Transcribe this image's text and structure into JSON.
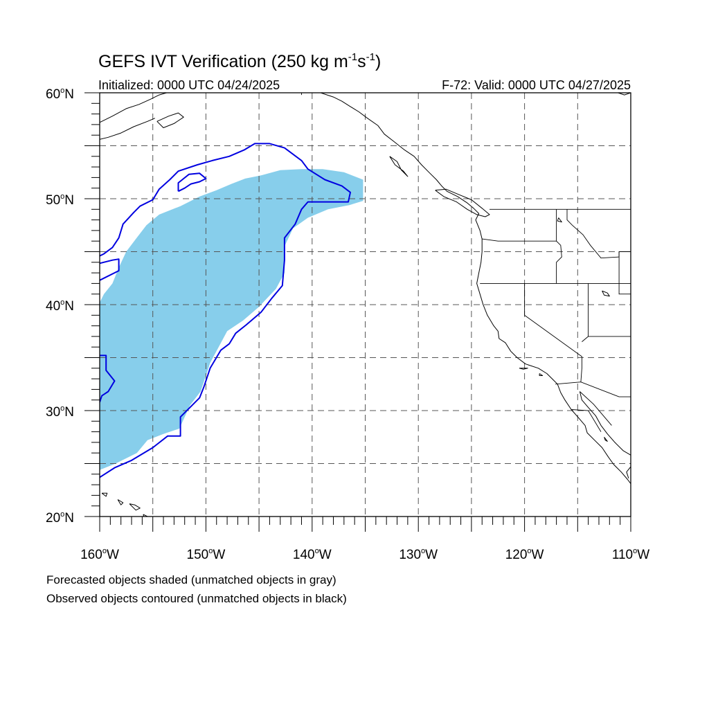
{
  "title": {
    "main": "GEFS IVT Verification (250 kg m",
    "sup1": "-1",
    "mid": "s",
    "sup2": "-1",
    "end": ")"
  },
  "subtitle": {
    "left": "Initialized: 0000 UTC 04/24/2025",
    "right": "F-72: Valid: 0000 UTC 04/27/2025"
  },
  "notes": [
    "Forecasted objects shaded (unmatched objects in gray)",
    "Observed objects contoured (unmatched objects in black)"
  ],
  "lat_labels": [
    {
      "lat": 60,
      "num": "60",
      "deg": "o",
      "hem": "N"
    },
    {
      "lat": 50,
      "num": "50",
      "deg": "o",
      "hem": "N"
    },
    {
      "lat": 40,
      "num": "40",
      "deg": "o",
      "hem": "N"
    },
    {
      "lat": 30,
      "num": "30",
      "deg": "o",
      "hem": "N"
    },
    {
      "lat": 20,
      "num": "20",
      "deg": "o",
      "hem": "N"
    }
  ],
  "lon_labels": [
    {
      "lon": -160,
      "num": "160",
      "deg": "o",
      "hem": "W"
    },
    {
      "lon": -150,
      "num": "150",
      "deg": "o",
      "hem": "W"
    },
    {
      "lon": -140,
      "num": "140",
      "deg": "o",
      "hem": "W"
    },
    {
      "lon": -130,
      "num": "130",
      "deg": "o",
      "hem": "W"
    },
    {
      "lon": -120,
      "num": "120",
      "deg": "o",
      "hem": "W"
    },
    {
      "lon": -110,
      "num": "110",
      "deg": "o",
      "hem": "W"
    }
  ],
  "map": {
    "lon_range": [
      -160,
      -110
    ],
    "lat_range": [
      20,
      60
    ],
    "grid_lons": [
      -155,
      -150,
      -145,
      -140,
      -135,
      -130,
      -125,
      -120,
      -115
    ],
    "grid_lats": [
      25,
      30,
      35,
      40,
      45,
      50,
      55
    ],
    "forecast_color": "#87ceeb",
    "observed_color": "#0000e0",
    "coast_color": "#000000"
  },
  "forecast_object": [
    [
      -160,
      24.4
    ],
    [
      -158.5,
      25.0
    ],
    [
      -156.5,
      26.0
    ],
    [
      -155.5,
      27.2
    ],
    [
      -154,
      27.8
    ],
    [
      -152.5,
      28.3
    ],
    [
      -151.5,
      30.5
    ],
    [
      -150.5,
      31.8
    ],
    [
      -149.6,
      34.5
    ],
    [
      -148.8,
      36.0
    ],
    [
      -148,
      37.5
    ],
    [
      -146.5,
      38.5
    ],
    [
      -145,
      39.8
    ],
    [
      -143.4,
      41.5
    ],
    [
      -142.6,
      43.0
    ],
    [
      -142.6,
      45.5
    ],
    [
      -141.8,
      47.2
    ],
    [
      -140.4,
      48.2
    ],
    [
      -138.5,
      49.0
    ],
    [
      -136.5,
      49.4
    ],
    [
      -135.2,
      49.8
    ],
    [
      -135.2,
      51.8
    ],
    [
      -137,
      52.5
    ],
    [
      -139,
      52.8
    ],
    [
      -141,
      52.8
    ],
    [
      -143,
      52.7
    ],
    [
      -144.8,
      52.2
    ],
    [
      -146.3,
      51.9
    ],
    [
      -147.6,
      51.4
    ],
    [
      -149,
      50.8
    ],
    [
      -150.6,
      50.2
    ],
    [
      -152.4,
      49.3
    ],
    [
      -154.4,
      48.5
    ],
    [
      -155.6,
      47.5
    ],
    [
      -156.6,
      46.2
    ],
    [
      -157.5,
      45.0
    ],
    [
      -158.2,
      43.5
    ],
    [
      -158.8,
      42.0
    ],
    [
      -159.6,
      41.0
    ],
    [
      -160,
      40.2
    ]
  ],
  "observed_objects": [
    [
      [
        -160,
        23.7
      ],
      [
        -158.6,
        24.6
      ],
      [
        -157,
        25.3
      ],
      [
        -155,
        26.5
      ],
      [
        -153.6,
        27.6
      ],
      [
        -152.4,
        27.6
      ],
      [
        -152.4,
        29.4
      ],
      [
        -151.4,
        30.4
      ],
      [
        -150.6,
        31.2
      ],
      [
        -150.2,
        32.2
      ],
      [
        -149.6,
        34.0
      ],
      [
        -148.6,
        35.7
      ],
      [
        -147.8,
        36.3
      ],
      [
        -147.2,
        37.3
      ],
      [
        -146.2,
        38.1
      ],
      [
        -144.8,
        39.3
      ],
      [
        -143.8,
        40.6
      ],
      [
        -142.8,
        41.8
      ],
      [
        -142.6,
        44.2
      ],
      [
        -142.6,
        46.3
      ],
      [
        -141.6,
        47.6
      ],
      [
        -141.0,
        49.0
      ],
      [
        -140.4,
        49.7
      ],
      [
        -138.6,
        49.7
      ],
      [
        -136.6,
        49.7
      ],
      [
        -136.4,
        50.6
      ],
      [
        -137.2,
        51.2
      ],
      [
        -138.8,
        51.8
      ],
      [
        -140.4,
        52.8
      ],
      [
        -141.0,
        53.6
      ],
      [
        -142.6,
        54.8
      ],
      [
        -144.0,
        55.2
      ],
      [
        -145.4,
        55.2
      ],
      [
        -146.4,
        54.6
      ],
      [
        -147.8,
        54.0
      ],
      [
        -149.4,
        53.6
      ],
      [
        -150.8,
        53.2
      ],
      [
        -152.6,
        52.6
      ],
      [
        -153.4,
        51.8
      ],
      [
        -154.4,
        50.9
      ],
      [
        -155.0,
        49.9
      ],
      [
        -156.2,
        49.3
      ],
      [
        -156.8,
        48.7
      ],
      [
        -157.8,
        47.6
      ],
      [
        -158.2,
        46.3
      ],
      [
        -158.8,
        45.4
      ],
      [
        -159.6,
        44.8
      ],
      [
        -160,
        44.6
      ]
    ],
    [
      [
        -152.6,
        50.7
      ],
      [
        -152.6,
        51.5
      ],
      [
        -151.6,
        52.3
      ],
      [
        -150.6,
        52.4
      ],
      [
        -150.0,
        51.9
      ],
      [
        -150.6,
        51.6
      ],
      [
        -151.4,
        51.4
      ],
      [
        -152.0,
        51.0
      ],
      [
        -152.6,
        50.7
      ]
    ],
    [
      [
        -160,
        43.9
      ],
      [
        -158.8,
        44.2
      ],
      [
        -158.2,
        44.3
      ],
      [
        -158.2,
        43.2
      ],
      [
        -159.4,
        42.6
      ],
      [
        -160,
        42.3
      ]
    ],
    [
      [
        -160,
        35.2
      ],
      [
        -159.4,
        35.2
      ],
      [
        -159.4,
        33.8
      ],
      [
        -158.6,
        32.8
      ],
      [
        -159.2,
        31.8
      ],
      [
        -159.8,
        31.4
      ],
      [
        -160,
        30.8
      ]
    ]
  ],
  "coastlines": [
    [
      [
        -160,
        57.2
      ],
      [
        -158.8,
        57.8
      ],
      [
        -157.5,
        58.5
      ],
      [
        -156.3,
        58.9
      ],
      [
        -155.2,
        59.4
      ],
      [
        -154.4,
        59.8
      ],
      [
        -153.7,
        60.0
      ]
    ],
    [
      [
        -160,
        55.6
      ],
      [
        -159.2,
        55.8
      ],
      [
        -158.0,
        56.2
      ],
      [
        -156.8,
        56.8
      ],
      [
        -155.5,
        57.3
      ],
      [
        -154.8,
        57.6
      ]
    ],
    [
      [
        -154.6,
        57.3
      ],
      [
        -153.5,
        57.8
      ],
      [
        -152.6,
        58.1
      ],
      [
        -152.1,
        57.7
      ],
      [
        -153.0,
        57.1
      ],
      [
        -154.0,
        56.7
      ],
      [
        -154.6,
        57.3
      ]
    ],
    [
      [
        -139.2,
        60
      ],
      [
        -138.0,
        59.6
      ],
      [
        -137.2,
        59.2
      ],
      [
        -136.4,
        58.7
      ],
      [
        -135.6,
        58.2
      ],
      [
        -134.8,
        57.6
      ],
      [
        -133.8,
        56.9
      ],
      [
        -133.2,
        56.1
      ],
      [
        -132.3,
        55.4
      ],
      [
        -131.3,
        54.6
      ],
      [
        -130.4,
        54.0
      ],
      [
        -129.7,
        53.2
      ],
      [
        -129.0,
        52.5
      ],
      [
        -128.3,
        51.8
      ],
      [
        -127.8,
        51.2
      ],
      [
        -127.3,
        50.7
      ],
      [
        -126.3,
        50.2
      ],
      [
        -125.4,
        49.6
      ],
      [
        -124.8,
        49.1
      ],
      [
        -124.3,
        48.6
      ],
      [
        -124.6,
        48.0
      ],
      [
        -124.2,
        47.0
      ],
      [
        -124.0,
        46.2
      ],
      [
        -124.0,
        45.0
      ],
      [
        -124.1,
        44.0
      ],
      [
        -124.3,
        43.0
      ],
      [
        -124.5,
        42.0
      ],
      [
        -124.2,
        41.0
      ],
      [
        -123.9,
        40.0
      ],
      [
        -123.5,
        39.0
      ],
      [
        -122.9,
        38.0
      ],
      [
        -122.5,
        37.5
      ],
      [
        -122.4,
        36.8
      ],
      [
        -121.8,
        36.4
      ],
      [
        -121.3,
        35.6
      ],
      [
        -120.7,
        35.0
      ],
      [
        -119.9,
        34.4
      ],
      [
        -118.7,
        34.0
      ],
      [
        -117.9,
        33.5
      ],
      [
        -117.3,
        32.9
      ],
      [
        -116.9,
        32.5
      ],
      [
        -116.6,
        31.7
      ],
      [
        -116.2,
        31.0
      ],
      [
        -115.6,
        30.1
      ],
      [
        -114.9,
        29.3
      ],
      [
        -114.3,
        28.6
      ],
      [
        -114.1,
        27.9
      ],
      [
        -113.4,
        27.2
      ],
      [
        -112.7,
        26.5
      ],
      [
        -112.1,
        25.6
      ],
      [
        -111.6,
        24.9
      ],
      [
        -110.9,
        24.2
      ],
      [
        -110.3,
        23.5
      ],
      [
        -110,
        23.1
      ]
    ],
    [
      [
        -128.4,
        50.8
      ],
      [
        -127.6,
        50.2
      ],
      [
        -126.4,
        49.7
      ],
      [
        -125.4,
        49.0
      ],
      [
        -124.5,
        48.5
      ],
      [
        -123.7,
        48.3
      ],
      [
        -123.3,
        48.5
      ],
      [
        -124.0,
        49.1
      ],
      [
        -125.0,
        49.9
      ],
      [
        -126.2,
        50.4
      ],
      [
        -127.4,
        50.9
      ],
      [
        -128.4,
        50.8
      ]
    ],
    [
      [
        -132.7,
        54.0
      ],
      [
        -132.0,
        53.5
      ],
      [
        -131.6,
        52.7
      ],
      [
        -131.0,
        52.1
      ],
      [
        -131.4,
        52.6
      ],
      [
        -132.2,
        53.2
      ],
      [
        -132.7,
        54.0
      ]
    ],
    [
      [
        -114.8,
        31.8
      ],
      [
        -114.6,
        31.0
      ],
      [
        -114.0,
        30.3
      ],
      [
        -113.3,
        29.5
      ],
      [
        -112.8,
        28.6
      ],
      [
        -112.2,
        27.8
      ],
      [
        -111.5,
        27.0
      ],
      [
        -110.7,
        26.2
      ],
      [
        -110,
        25.8
      ]
    ],
    [
      [
        -110,
        24.7
      ],
      [
        -110.4,
        24.2
      ],
      [
        -110.2,
        23.6
      ]
    ],
    [
      [
        -110,
        60
      ],
      [
        -110.6,
        59.8
      ],
      [
        -111.2,
        60
      ]
    ],
    [
      [
        -112.7,
        41.3
      ],
      [
        -112.2,
        41.1
      ],
      [
        -112.0,
        40.8
      ],
      [
        -112.5,
        40.9
      ],
      [
        -112.7,
        41.3
      ]
    ],
    [
      [
        -116.8,
        48.2
      ],
      [
        -116.5,
        47.8
      ],
      [
        -116.9,
        47.9
      ],
      [
        -116.8,
        48.2
      ]
    ],
    [
      [
        -159.8,
        22.2
      ],
      [
        -159.3,
        22.2
      ],
      [
        -159.4,
        21.9
      ],
      [
        -159.8,
        22.2
      ]
    ],
    [
      [
        -158.3,
        21.6
      ],
      [
        -157.8,
        21.3
      ],
      [
        -158.0,
        21.1
      ],
      [
        -158.3,
        21.6
      ]
    ],
    [
      [
        -157.2,
        21.2
      ],
      [
        -156.7,
        21.1
      ],
      [
        -156.2,
        20.8
      ],
      [
        -156.6,
        20.6
      ],
      [
        -157.2,
        21.2
      ]
    ],
    [
      [
        -155.9,
        20.2
      ],
      [
        -155.1,
        19.8
      ],
      [
        -154.9,
        19.5
      ],
      [
        -155.6,
        19.0
      ],
      [
        -155.9,
        20.2
      ]
    ],
    [
      [
        -120.5,
        34.0
      ],
      [
        -119.7,
        34.0
      ],
      [
        -120.1,
        33.9
      ],
      [
        -120.5,
        34.0
      ]
    ],
    [
      [
        -118.6,
        33.5
      ],
      [
        -118.3,
        33.3
      ],
      [
        -118.6,
        33.3
      ],
      [
        -118.6,
        33.5
      ]
    ],
    [
      [
        -112.5,
        27.5
      ],
      [
        -112.2,
        27.1
      ],
      [
        -112.4,
        27.2
      ],
      [
        -112.5,
        27.5
      ]
    ]
  ],
  "borders": [
    [
      [
        -141.0,
        60
      ],
      [
        -141.0,
        59.8
      ]
    ],
    [
      [
        -123.3,
        49.0
      ],
      [
        -95,
        49.0
      ]
    ],
    [
      [
        -124.0,
        46.2
      ],
      [
        -122.5,
        46.0
      ],
      [
        -120.5,
        46.0
      ],
      [
        -119.0,
        46.0
      ],
      [
        -117.0,
        46.0
      ]
    ],
    [
      [
        -124.2,
        42.0
      ],
      [
        -111.0,
        42.0
      ],
      [
        -110,
        42.0
      ]
    ],
    [
      [
        -120.0,
        42.0
      ],
      [
        -120.0,
        39.0
      ],
      [
        -114.6,
        35.1
      ],
      [
        -114.6,
        34.0
      ],
      [
        -114.7,
        32.7
      ]
    ],
    [
      [
        -117.1,
        32.5
      ],
      [
        -114.7,
        32.7
      ],
      [
        -111.1,
        31.3
      ],
      [
        -110,
        31.3
      ]
    ],
    [
      [
        -117.0,
        49.0
      ],
      [
        -117.0,
        46.0
      ],
      [
        -116.6,
        45.6
      ],
      [
        -116.5,
        44.5
      ],
      [
        -117.0,
        44.0
      ],
      [
        -117.0,
        42.0
      ]
    ],
    [
      [
        -114.0,
        42.0
      ],
      [
        -114.0,
        37.0
      ],
      [
        -114.6,
        36.5
      ]
    ],
    [
      [
        -114.0,
        37.0
      ],
      [
        -110,
        37.0
      ]
    ],
    [
      [
        -116.0,
        49.0
      ],
      [
        -116.0,
        48.0
      ],
      [
        -115.5,
        47.5
      ],
      [
        -114.5,
        46.6
      ],
      [
        -113.8,
        45.6
      ],
      [
        -112.8,
        44.4
      ],
      [
        -111.1,
        44.5
      ],
      [
        -111.1,
        45.0
      ],
      [
        -110,
        45.0
      ]
    ],
    [
      [
        -111.1,
        45.0
      ],
      [
        -111.1,
        41.0
      ],
      [
        -110,
        41.0
      ]
    ],
    [
      [
        -114.8,
        31.8
      ],
      [
        -113.5,
        30.6
      ],
      [
        -112.4,
        29.3
      ],
      [
        -111.8,
        28.6
      ]
    ],
    [
      [
        -115.6,
        30.1
      ],
      [
        -114.0,
        30.0
      ],
      [
        -112.8,
        28.0
      ]
    ]
  ]
}
